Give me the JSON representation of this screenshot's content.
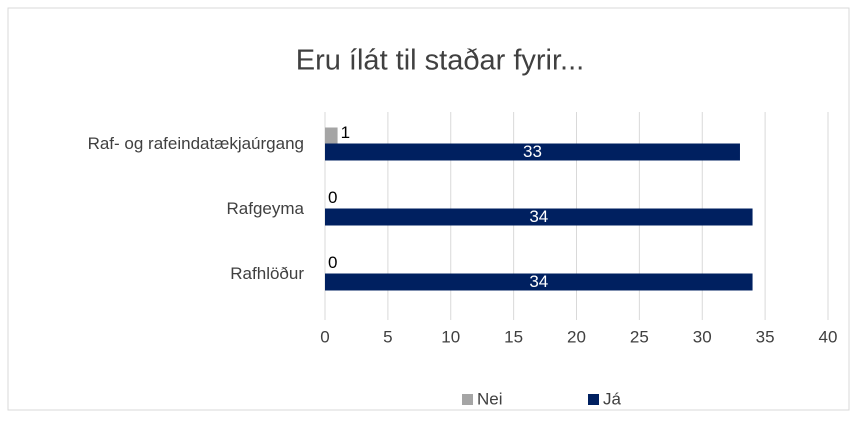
{
  "chart_data": {
    "type": "bar",
    "orientation": "horizontal",
    "title": "Eru ílát til staðar fyrir...",
    "categories": [
      "Raf- og rafeindatækjaúrgang",
      "Rafgeyma",
      "Rafhlöður"
    ],
    "series": [
      {
        "name": "Nei",
        "color": "#a5a5a5",
        "values": [
          1,
          0,
          0
        ]
      },
      {
        "name": "Já",
        "color": "#002060",
        "values": [
          33,
          34,
          34
        ]
      }
    ],
    "xlim": [
      0,
      40
    ],
    "xticks": [
      0,
      5,
      10,
      15,
      20,
      25,
      30,
      35,
      40
    ],
    "grid": true,
    "legend": "bottom"
  }
}
